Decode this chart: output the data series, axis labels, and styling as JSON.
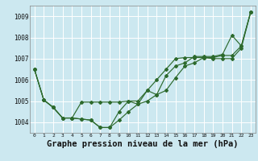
{
  "background_color": "#cce8f0",
  "grid_color": "#ffffff",
  "line_color": "#2d6a2d",
  "xlabel": "Graphe pression niveau de la mer (hPa)",
  "xlabel_fontsize": 7.5,
  "ylim": [
    1003.5,
    1009.5
  ],
  "xlim": [
    -0.5,
    23.5
  ],
  "yticks": [
    1004,
    1005,
    1006,
    1007,
    1008,
    1009
  ],
  "xtick_labels": [
    "0",
    "1",
    "2",
    "3",
    "4",
    "5",
    "6",
    "7",
    "8",
    "9",
    "10",
    "11",
    "12",
    "13",
    "14",
    "15",
    "16",
    "17",
    "18",
    "19",
    "20",
    "21",
    "22",
    "23"
  ],
  "lines": [
    [
      1006.5,
      1005.05,
      1004.7,
      1004.2,
      1004.2,
      1004.15,
      1004.1,
      1003.75,
      1003.75,
      1004.1,
      1004.5,
      1004.85,
      1005.0,
      1005.3,
      1005.5,
      1006.1,
      1006.65,
      1006.8,
      1007.05,
      1007.0,
      1007.0,
      1007.0,
      1007.5,
      1009.2
    ],
    [
      1006.5,
      1005.05,
      1004.7,
      1004.2,
      1004.2,
      1004.15,
      1004.1,
      1003.75,
      1003.75,
      1004.5,
      1005.0,
      1004.85,
      1005.5,
      1005.3,
      1006.2,
      1006.65,
      1006.8,
      1007.1,
      1007.1,
      1007.1,
      1007.2,
      1008.1,
      1007.6,
      1009.2
    ],
    [
      1006.5,
      1005.05,
      1004.7,
      1004.2,
      1004.2,
      1004.95,
      1004.95,
      1004.95,
      1004.95,
      1004.95,
      1005.0,
      1005.0,
      1005.5,
      1006.0,
      1006.5,
      1007.0,
      1007.05,
      1007.05,
      1007.05,
      1007.05,
      1007.15,
      1007.15,
      1007.6,
      1009.2
    ]
  ]
}
